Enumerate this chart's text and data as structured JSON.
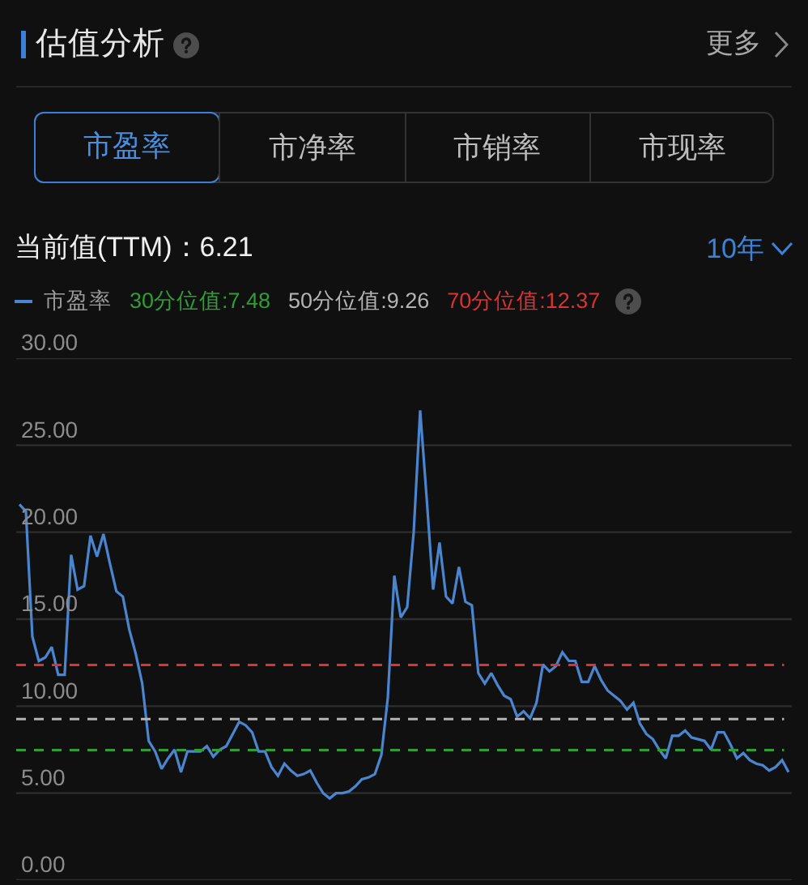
{
  "chart_data": {
    "type": "line",
    "title": "估值分析",
    "subtitle": "当前值(TTM)：6.21",
    "annotations": [
      "更多",
      "市盈率",
      "市净率",
      "市销率",
      "市现率",
      "10年"
    ],
    "categories": [
      null,
      null,
      null,
      null,
      null,
      null,
      null,
      null,
      null,
      null,
      null,
      null,
      null,
      null,
      null,
      null,
      null,
      null,
      null,
      null,
      null,
      null,
      null,
      null,
      null,
      null,
      null,
      null,
      null,
      null,
      null,
      null,
      null,
      null,
      null,
      null,
      null,
      null,
      null,
      null,
      null,
      null,
      null,
      null,
      null,
      null,
      null,
      null,
      null,
      null,
      null,
      null,
      null,
      null,
      null,
      null,
      null,
      null,
      null,
      null,
      null,
      null,
      null,
      null,
      null,
      null,
      null,
      null,
      null,
      null,
      null,
      null,
      null,
      null,
      null,
      null,
      null,
      null,
      null,
      null,
      null,
      null,
      null,
      null,
      null,
      null,
      null,
      null,
      null,
      null,
      null,
      null,
      null,
      null,
      null,
      null,
      null,
      null,
      null,
      null,
      null,
      null,
      null,
      null,
      null,
      null,
      null,
      null,
      null,
      null,
      null,
      null,
      null,
      null,
      null,
      null,
      null,
      null,
      null,
      null
    ],
    "series": [
      {
        "name": "市盈率",
        "color": "#4a86d0",
        "values": [
          21.6,
          21.2,
          14.0,
          12.6,
          12.8,
          13.4,
          11.8,
          11.8,
          18.7,
          16.7,
          16.9,
          19.8,
          18.6,
          19.9,
          18.2,
          16.6,
          16.3,
          14.4,
          13.0,
          11.3,
          8.0,
          7.4,
          6.4,
          7.0,
          7.5,
          6.2,
          7.4,
          7.4,
          7.4,
          7.7,
          7.1,
          7.5,
          7.7,
          8.4,
          9.1,
          8.9,
          8.5,
          7.4,
          7.4,
          6.5,
          6.0,
          6.7,
          6.3,
          6.0,
          6.1,
          6.3,
          5.6,
          5.0,
          4.7,
          5.0,
          5.0,
          5.1,
          5.4,
          5.8,
          5.9,
          6.1,
          7.2,
          10.5,
          17.5,
          15.1,
          15.7,
          20.0,
          27.0,
          22.0,
          16.7,
          19.4,
          16.3,
          15.9,
          18.0,
          16.0,
          15.8,
          11.9,
          11.3,
          11.9,
          11.2,
          10.6,
          10.4,
          9.4,
          9.7,
          9.3,
          10.2,
          12.4,
          12.0,
          12.3,
          13.1,
          12.6,
          12.6,
          11.4,
          11.4,
          12.3,
          11.5,
          10.9,
          10.6,
          10.3,
          9.8,
          10.2,
          9.0,
          8.4,
          8.1,
          7.5,
          7.0,
          8.3,
          8.3,
          8.6,
          8.2,
          8.1,
          8.0,
          7.5,
          8.5,
          8.5,
          7.8,
          7.0,
          7.3,
          6.9,
          6.7,
          6.6,
          6.3,
          6.5,
          6.9,
          6.21
        ]
      }
    ],
    "ylim": [
      0,
      30
    ],
    "yticks": [
      {
        "value": 0,
        "label": "0.00"
      },
      {
        "value": 5,
        "label": "5.00"
      },
      {
        "value": 10,
        "label": "10.00"
      },
      {
        "value": 15,
        "label": "15.00"
      },
      {
        "value": 20,
        "label": "20.00"
      },
      {
        "value": 25,
        "label": "25.00"
      },
      {
        "value": 30,
        "label": "30.00"
      }
    ],
    "ref_lines": [
      {
        "axis": "y",
        "value": 7.48,
        "label": "30分位值:7.48",
        "color": "#2f9e35",
        "line_style": "dashed"
      },
      {
        "axis": "y",
        "value": 9.26,
        "label": "50分位值:9.26",
        "color": "#b4b4b4",
        "line_style": "dashed"
      },
      {
        "axis": "y",
        "value": 12.37,
        "label": "70分位值:12.37",
        "color": "#d93333",
        "line_style": "dashed"
      }
    ],
    "grid": "y",
    "legend": "top left",
    "tick_labels": "y"
  }
}
